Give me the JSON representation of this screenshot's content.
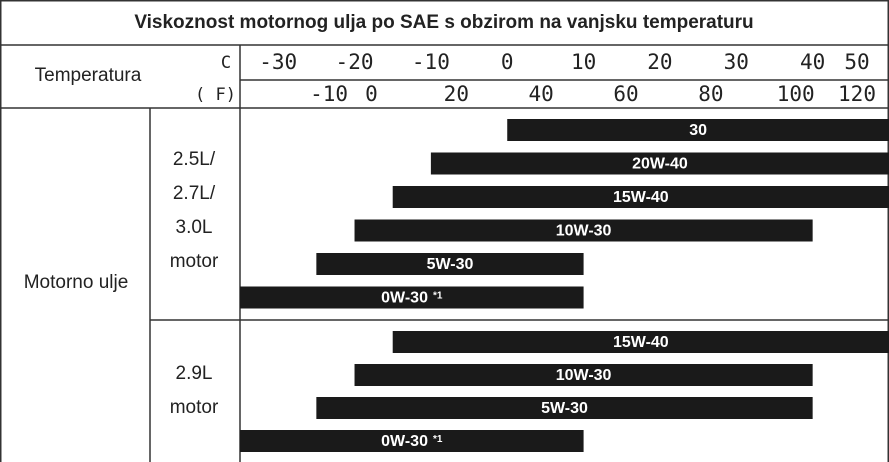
{
  "chart_data": {
    "type": "range_bar",
    "title": "Viskoznost motornog ulja po SAE s obzirom na vanjsku temperaturu",
    "row_header": "Temperatura",
    "x_unit_label": "C",
    "x2_unit_label": "( F)",
    "column_header": "Motorno ulje",
    "color": "#1a1a1a",
    "xlim": [
      -35,
      50
    ],
    "xticks": [
      -30,
      -20,
      -10,
      0,
      10,
      20,
      30,
      40,
      50
    ],
    "x2lim": [
      -31,
      122
    ],
    "x2ticks": [
      -10,
      0,
      20,
      40,
      60,
      80,
      100,
      120
    ],
    "groups": [
      {
        "labels": [
          "2.5L/",
          "2.7L/",
          "3.0L",
          "motor"
        ],
        "series": [
          {
            "name": "30",
            "values": [
              0,
              50
            ]
          },
          {
            "name": "20W-40",
            "values": [
              -10,
              50
            ]
          },
          {
            "name": "15W-40",
            "values": [
              -15,
              50
            ]
          },
          {
            "name": "10W-30",
            "values": [
              -20,
              40
            ]
          },
          {
            "name": "5W-30",
            "values": [
              -25,
              10
            ]
          },
          {
            "name": "0W-30",
            "note": "*1",
            "values": [
              -35,
              10
            ]
          }
        ]
      },
      {
        "labels": [
          "2.9L",
          "motor"
        ],
        "series": [
          {
            "name": "15W-40",
            "values": [
              -15,
              50
            ]
          },
          {
            "name": "10W-30",
            "values": [
              -20,
              40
            ]
          },
          {
            "name": "5W-30",
            "values": [
              -25,
              40
            ]
          },
          {
            "name": "0W-30",
            "note": "*1",
            "values": [
              -35,
              10
            ]
          }
        ]
      }
    ]
  }
}
